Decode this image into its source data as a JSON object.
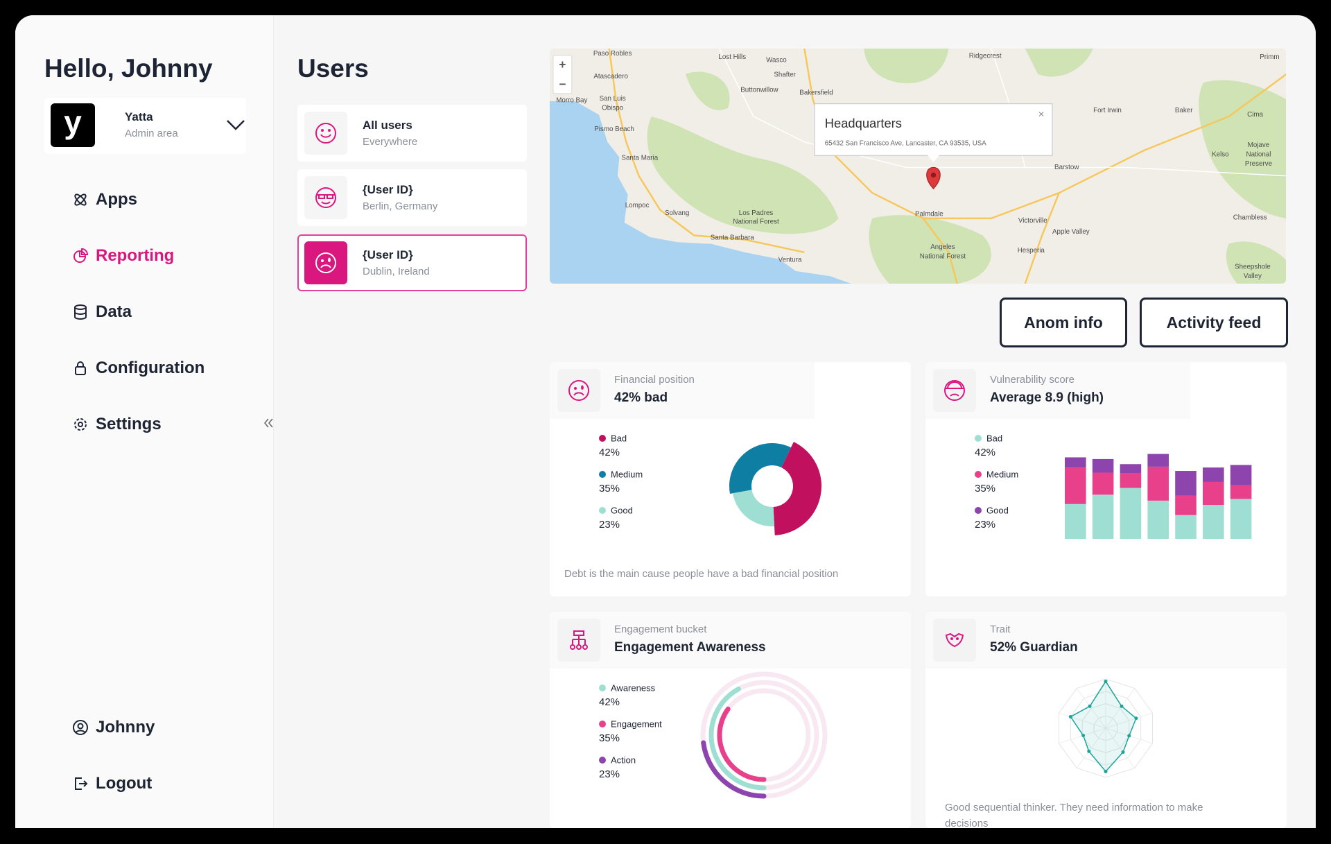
{
  "sidebar": {
    "greeting": "Hello, Johnny",
    "account": {
      "logo": "y",
      "name": "Yatta",
      "role": "Admin area"
    },
    "nav": [
      "Apps",
      "Reporting",
      "Data",
      "Configuration",
      "Settings"
    ],
    "footer": [
      "Johnny",
      "Logout"
    ]
  },
  "users": {
    "title": "Users",
    "items": [
      {
        "name": "All users",
        "location": "Everywhere"
      },
      {
        "name": "{User ID}",
        "location": "Berlin, Germany"
      },
      {
        "name": "{User ID}",
        "location": "Dublin, Ireland"
      }
    ]
  },
  "map": {
    "zoom_in": "+",
    "zoom_out": "−",
    "popup": {
      "title": "Headquarters",
      "address": "65432 San Francisco Ave, Lancaster, CA 93535, USA",
      "close": "×"
    },
    "labels": [
      "Paso Robles",
      "Lost Hills",
      "Wasco",
      "Ridgecrest",
      "Primm",
      "Atascadero",
      "Shafter",
      "Buttonwillow",
      "Bakersfield",
      "Morro Bay",
      "San Luis",
      "Obispo",
      "Fort Irwin",
      "Baker",
      "Cima",
      "Pismo Beach",
      "Santa Maria",
      "Barstow",
      "Kelso",
      "Mojave",
      "National",
      "Preserve",
      "Lompoc",
      "Solvang",
      "Los Padres",
      "National Forest",
      "Palmdale",
      "Victorville",
      "Chambless",
      "Apple Valley",
      "Santa Barbara",
      "Hesperia",
      "Ventura",
      "Angeles",
      "National Forest",
      "Sheepshole",
      "Valley"
    ]
  },
  "buttons": [
    "Anom info",
    "Activity feed"
  ],
  "cards": [
    {
      "label": "Financial position",
      "value": "42% bad",
      "note": "Debt is the main cause people have a bad financial position",
      "chart_data": {
        "type": "donut",
        "categories": [
          "Bad",
          "Medium",
          "Good"
        ],
        "values": [
          42,
          35,
          23
        ],
        "value_labels": [
          "42%",
          "35%",
          "23%"
        ],
        "colors": [
          "#c0105e",
          "#0e7ea3",
          "#9fdfd3"
        ]
      }
    },
    {
      "label": "Vulnerability score",
      "value": "Average 8.9 (high)",
      "chart_data": {
        "type": "stacked-bar",
        "ylim": [
          0,
          100
        ],
        "series": [
          {
            "name": "Bad",
            "share": "42%",
            "color": "#9fdfd3",
            "values": [
              41,
              52,
              60,
              45,
              28,
              40,
              47
            ]
          },
          {
            "name": "Medium",
            "share": "35%",
            "color": "#e8408a",
            "values": [
              43,
              26,
              17,
              40,
              23,
              27,
              16
            ]
          },
          {
            "name": "Good",
            "share": "23%",
            "color": "#8e44ad",
            "values": [
              12,
              16,
              11,
              15,
              29,
              17,
              24
            ]
          }
        ]
      }
    },
    {
      "label": "Engagement bucket",
      "value": "Engagement Awareness",
      "chart_data": {
        "type": "radial-bar",
        "categories": [
          "Awareness",
          "Engagement",
          "Action"
        ],
        "values": [
          42,
          35,
          23
        ],
        "value_labels": [
          "42%",
          "35%",
          "23%"
        ],
        "colors": [
          "#9fdfd3",
          "#e8408a",
          "#8e44ad"
        ]
      }
    },
    {
      "label": "Trait",
      "value": "52% Guardian",
      "note": "Good sequential thinker. They need information to make decisions",
      "chart_data": {
        "type": "radar",
        "ylim": [
          0,
          100
        ],
        "values": [
          95,
          55,
          65,
          50,
          60,
          88,
          58,
          48,
          75,
          55
        ],
        "color": "#1aa59a"
      }
    }
  ]
}
